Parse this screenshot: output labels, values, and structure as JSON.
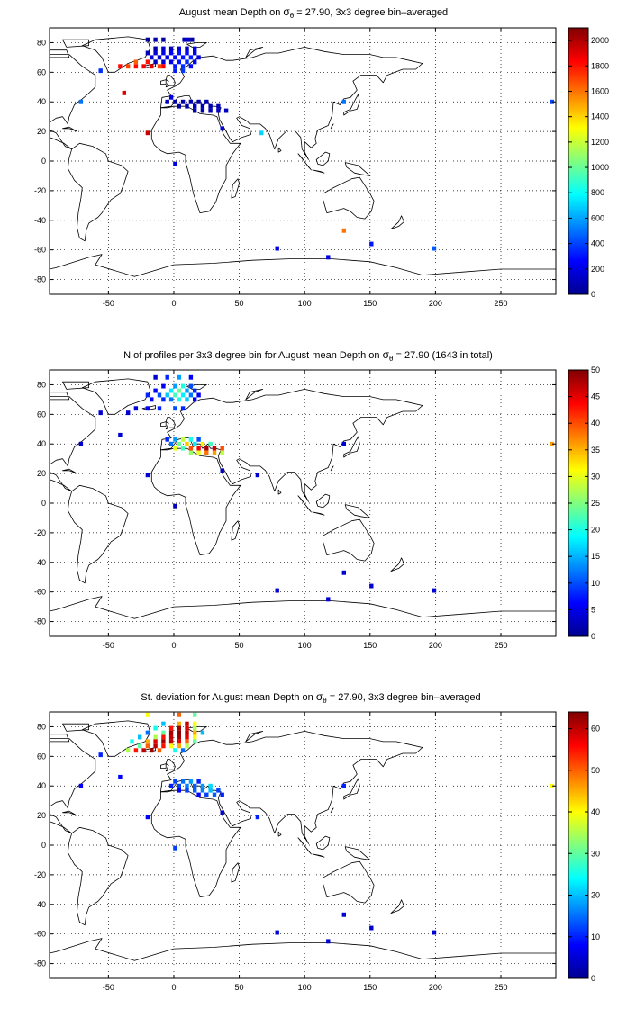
{
  "chart_data": [
    {
      "type": "heatmap",
      "title_pre": "August mean Depth on ",
      "title_sigma": "σ",
      "title_sub": "θ",
      "title_post": " = 27.90, 3x3 degree bin–averaged",
      "xlabel": "",
      "ylabel": "",
      "xlim": [
        -95,
        292
      ],
      "ylim": [
        -90,
        90
      ],
      "xticks": [
        -50,
        0,
        50,
        100,
        150,
        200,
        250
      ],
      "yticks": [
        -80,
        -60,
        -40,
        -20,
        0,
        20,
        40,
        60,
        80
      ],
      "xtick_labels": [
        "-50",
        "0",
        "50",
        "100",
        "150",
        "200",
        "250"
      ],
      "ytick_labels": [
        "-80",
        "-60",
        "-40",
        "-20",
        "0",
        "20",
        "40",
        "60",
        "80"
      ],
      "grid": true,
      "colormap": "jet",
      "colorbar": {
        "min": 0,
        "max": 2100,
        "ticks": [
          0,
          200,
          400,
          600,
          800,
          1000,
          1200,
          1400,
          1600,
          1800,
          2000
        ],
        "labels": [
          "0",
          "200",
          "400",
          "600",
          "800",
          "1000",
          "1200",
          "1400",
          "1600",
          "1800",
          "2000"
        ]
      },
      "cells": [
        [
          -20,
          82,
          60
        ],
        [
          -14,
          82,
          90
        ],
        [
          -8,
          82,
          60
        ],
        [
          8,
          82,
          120
        ],
        [
          11,
          82,
          150
        ],
        [
          14,
          82,
          90
        ],
        [
          -14,
          76,
          80
        ],
        [
          -8,
          76,
          150
        ],
        [
          -2,
          76,
          120
        ],
        [
          4,
          76,
          180
        ],
        [
          10,
          76,
          120
        ],
        [
          16,
          76,
          240
        ],
        [
          -20,
          73,
          140
        ],
        [
          -14,
          73,
          180
        ],
        [
          -8,
          73,
          220
        ],
        [
          -2,
          73,
          260
        ],
        [
          4,
          73,
          300
        ],
        [
          10,
          73,
          260
        ],
        [
          16,
          73,
          200
        ],
        [
          -17,
          70,
          200
        ],
        [
          -11,
          70,
          160
        ],
        [
          -5,
          70,
          200
        ],
        [
          1,
          70,
          260
        ],
        [
          7,
          70,
          300
        ],
        [
          13,
          70,
          320
        ],
        [
          19,
          70,
          200
        ],
        [
          -14,
          67,
          120
        ],
        [
          -8,
          67,
          160
        ],
        [
          -2,
          67,
          220
        ],
        [
          4,
          67,
          300
        ],
        [
          10,
          67,
          340
        ],
        [
          16,
          67,
          260
        ],
        [
          -41,
          64,
          1820
        ],
        [
          -35,
          64,
          1700
        ],
        [
          -29,
          64,
          1820
        ],
        [
          -23,
          64,
          1850
        ],
        [
          -17,
          64,
          1900
        ],
        [
          -11,
          64,
          1700
        ],
        [
          1,
          64,
          300
        ],
        [
          7,
          64,
          350
        ],
        [
          13,
          64,
          280
        ],
        [
          -29,
          67,
          1650
        ],
        [
          -20,
          67,
          1800
        ],
        [
          -8,
          64,
          1850
        ],
        [
          -56,
          61,
          360
        ],
        [
          1,
          61,
          320
        ],
        [
          7,
          61,
          380
        ],
        [
          -38,
          46,
          1900
        ],
        [
          -20,
          19,
          1950
        ],
        [
          67,
          19,
          700
        ],
        [
          -2,
          43,
          200
        ],
        [
          -5,
          40,
          120
        ],
        [
          1,
          40,
          80
        ],
        [
          7,
          40,
          90
        ],
        [
          13,
          40,
          110
        ],
        [
          19,
          40,
          80
        ],
        [
          25,
          40,
          120
        ],
        [
          4,
          37,
          80
        ],
        [
          10,
          37,
          100
        ],
        [
          16,
          37,
          120
        ],
        [
          22,
          37,
          100
        ],
        [
          28,
          37,
          90
        ],
        [
          34,
          37,
          120
        ],
        [
          16,
          34,
          80
        ],
        [
          22,
          34,
          100
        ],
        [
          28,
          34,
          110
        ],
        [
          34,
          34,
          150
        ],
        [
          40,
          34,
          130
        ],
        [
          -71,
          40,
          500
        ],
        [
          130,
          40,
          500
        ],
        [
          289,
          40,
          400
        ],
        [
          37,
          22,
          200
        ],
        [
          1,
          -2,
          200
        ],
        [
          130,
          -47,
          1600
        ],
        [
          151,
          -56,
          300
        ],
        [
          199,
          -59,
          450
        ],
        [
          79,
          -59,
          200
        ],
        [
          118,
          -65,
          200
        ]
      ]
    },
    {
      "type": "heatmap",
      "title_pre": "N of profiles per 3x3 degree bin for August mean Depth on ",
      "title_sigma": "σ",
      "title_sub": "θ",
      "title_post": " = 27.90 (1643 in total)",
      "xlabel": "",
      "ylabel": "",
      "xlim": [
        -95,
        292
      ],
      "ylim": [
        -90,
        90
      ],
      "xticks": [
        -50,
        0,
        50,
        100,
        150,
        200,
        250
      ],
      "yticks": [
        -80,
        -60,
        -40,
        -20,
        0,
        20,
        40,
        60,
        80
      ],
      "xtick_labels": [
        "-50",
        "0",
        "50",
        "100",
        "150",
        "200",
        "250"
      ],
      "ytick_labels": [
        "-80",
        "-60",
        "-40",
        "-20",
        "0",
        "20",
        "40",
        "60",
        "80"
      ],
      "grid": true,
      "colormap": "jet",
      "colorbar": {
        "min": 0,
        "max": 50,
        "ticks": [
          0,
          5,
          10,
          15,
          20,
          25,
          30,
          35,
          40,
          45,
          50
        ],
        "labels": [
          "0",
          "5",
          "10",
          "15",
          "20",
          "25",
          "30",
          "35",
          "40",
          "45",
          "50"
        ]
      },
      "cells": [
        [
          -14,
          85,
          4
        ],
        [
          -5,
          85,
          8
        ],
        [
          4,
          85,
          14
        ],
        [
          13,
          85,
          6
        ],
        [
          -8,
          79,
          6
        ],
        [
          1,
          79,
          14
        ],
        [
          7,
          79,
          20
        ],
        [
          13,
          79,
          10
        ],
        [
          -14,
          76,
          6
        ],
        [
          -2,
          76,
          18
        ],
        [
          4,
          76,
          24
        ],
        [
          10,
          76,
          14
        ],
        [
          16,
          76,
          8
        ],
        [
          -20,
          73,
          8
        ],
        [
          -11,
          73,
          10
        ],
        [
          -5,
          73,
          16
        ],
        [
          1,
          73,
          22
        ],
        [
          7,
          73,
          18
        ],
        [
          13,
          73,
          12
        ],
        [
          19,
          73,
          6
        ],
        [
          -17,
          70,
          6
        ],
        [
          -8,
          70,
          8
        ],
        [
          -2,
          70,
          12
        ],
        [
          4,
          70,
          20
        ],
        [
          10,
          70,
          16
        ],
        [
          16,
          70,
          6
        ],
        [
          -29,
          64,
          4
        ],
        [
          -20,
          64,
          6
        ],
        [
          -11,
          64,
          8
        ],
        [
          1,
          64,
          10
        ],
        [
          7,
          64,
          8
        ],
        [
          -56,
          61,
          4
        ],
        [
          -35,
          61,
          4
        ],
        [
          -41,
          46,
          4
        ],
        [
          -71,
          40,
          4
        ],
        [
          -20,
          19,
          4
        ],
        [
          64,
          19,
          4
        ],
        [
          37,
          22,
          3
        ],
        [
          1,
          -2,
          3
        ],
        [
          -5,
          43,
          8
        ],
        [
          1,
          43,
          14
        ],
        [
          7,
          43,
          28
        ],
        [
          13,
          43,
          20
        ],
        [
          19,
          43,
          10
        ],
        [
          -2,
          40,
          12
        ],
        [
          4,
          40,
          24
        ],
        [
          10,
          40,
          34
        ],
        [
          16,
          40,
          18
        ],
        [
          22,
          40,
          32
        ],
        [
          28,
          40,
          22
        ],
        [
          1,
          37,
          30
        ],
        [
          7,
          37,
          22
        ],
        [
          13,
          37,
          40
        ],
        [
          19,
          37,
          44
        ],
        [
          25,
          37,
          48
        ],
        [
          31,
          37,
          46
        ],
        [
          37,
          37,
          40
        ],
        [
          13,
          34,
          26
        ],
        [
          19,
          34,
          30
        ],
        [
          25,
          34,
          38
        ],
        [
          31,
          34,
          36
        ],
        [
          37,
          34,
          28
        ],
        [
          130,
          40,
          4
        ],
        [
          289,
          40,
          36
        ],
        [
          130,
          -47,
          4
        ],
        [
          151,
          -56,
          4
        ],
        [
          199,
          -59,
          4
        ],
        [
          79,
          -59,
          4
        ],
        [
          118,
          -65,
          4
        ]
      ]
    },
    {
      "type": "heatmap",
      "title_pre": "St. deviation for August mean Depth on ",
      "title_sigma": "σ",
      "title_sub": "θ",
      "title_post": " = 27.90, 3x3 degree bin–averaged",
      "xlabel": "",
      "ylabel": "",
      "xlim": [
        -95,
        292
      ],
      "ylim": [
        -90,
        90
      ],
      "xticks": [
        -50,
        0,
        50,
        100,
        150,
        200,
        250
      ],
      "yticks": [
        -80,
        -60,
        -40,
        -20,
        0,
        20,
        40,
        60,
        80
      ],
      "xtick_labels": [
        "-50",
        "0",
        "50",
        "100",
        "150",
        "200",
        "250"
      ],
      "ytick_labels": [
        "-80",
        "-60",
        "-40",
        "-20",
        "0",
        "20",
        "40",
        "60",
        "80"
      ],
      "grid": true,
      "colormap": "jet",
      "colorbar": {
        "min": 0,
        "max": 64,
        "ticks": [
          0,
          10,
          20,
          30,
          40,
          50,
          60
        ],
        "labels": [
          "0",
          "10",
          "20",
          "30",
          "40",
          "50",
          "60"
        ]
      },
      "cells": [
        [
          -20,
          88,
          40
        ],
        [
          4,
          88,
          50
        ],
        [
          16,
          88,
          30
        ],
        [
          -8,
          82,
          20
        ],
        [
          4,
          82,
          45
        ],
        [
          10,
          82,
          60
        ],
        [
          16,
          82,
          40
        ],
        [
          -14,
          79,
          25
        ],
        [
          -2,
          79,
          55
        ],
        [
          4,
          79,
          62
        ],
        [
          10,
          79,
          58
        ],
        [
          16,
          79,
          35
        ],
        [
          -20,
          76,
          15
        ],
        [
          -8,
          76,
          30
        ],
        [
          -2,
          76,
          62
        ],
        [
          4,
          76,
          63
        ],
        [
          10,
          76,
          60
        ],
        [
          16,
          76,
          45
        ],
        [
          22,
          76,
          20
        ],
        [
          -26,
          73,
          20
        ],
        [
          -14,
          73,
          35
        ],
        [
          -8,
          73,
          55
        ],
        [
          -2,
          73,
          60
        ],
        [
          4,
          73,
          62
        ],
        [
          10,
          73,
          58
        ],
        [
          16,
          73,
          40
        ],
        [
          -32,
          70,
          25
        ],
        [
          -20,
          70,
          45
        ],
        [
          -14,
          70,
          58
        ],
        [
          -8,
          70,
          62
        ],
        [
          -2,
          70,
          60
        ],
        [
          4,
          70,
          58
        ],
        [
          10,
          70,
          50
        ],
        [
          16,
          70,
          30
        ],
        [
          -26,
          67,
          30
        ],
        [
          -20,
          67,
          50
        ],
        [
          -14,
          67,
          60
        ],
        [
          -8,
          67,
          55
        ],
        [
          -2,
          67,
          40
        ],
        [
          4,
          67,
          45
        ],
        [
          10,
          67,
          35
        ],
        [
          -35,
          64,
          35
        ],
        [
          -29,
          64,
          55
        ],
        [
          -23,
          64,
          60
        ],
        [
          -17,
          64,
          62
        ],
        [
          -11,
          64,
          50
        ],
        [
          1,
          64,
          25
        ],
        [
          7,
          64,
          15
        ],
        [
          -56,
          61,
          10
        ],
        [
          -41,
          46,
          8
        ],
        [
          -71,
          40,
          8
        ],
        [
          -20,
          19,
          8
        ],
        [
          64,
          19,
          10
        ],
        [
          37,
          22,
          5
        ],
        [
          1,
          -2,
          12
        ],
        [
          1,
          43,
          12
        ],
        [
          7,
          43,
          15
        ],
        [
          13,
          43,
          18
        ],
        [
          19,
          43,
          10
        ],
        [
          -2,
          40,
          10
        ],
        [
          4,
          40,
          12
        ],
        [
          10,
          40,
          16
        ],
        [
          16,
          40,
          14
        ],
        [
          22,
          40,
          18
        ],
        [
          28,
          40,
          22
        ],
        [
          4,
          37,
          8
        ],
        [
          10,
          37,
          12
        ],
        [
          16,
          37,
          14
        ],
        [
          22,
          37,
          16
        ],
        [
          28,
          37,
          20
        ],
        [
          34,
          37,
          12
        ],
        [
          19,
          34,
          8
        ],
        [
          25,
          34,
          12
        ],
        [
          31,
          34,
          14
        ],
        [
          37,
          34,
          10
        ],
        [
          130,
          40,
          10
        ],
        [
          289,
          40,
          40
        ],
        [
          130,
          -47,
          5
        ],
        [
          151,
          -56,
          5
        ],
        [
          199,
          -59,
          5
        ],
        [
          79,
          -59,
          5
        ],
        [
          118,
          -65,
          5
        ]
      ]
    }
  ]
}
